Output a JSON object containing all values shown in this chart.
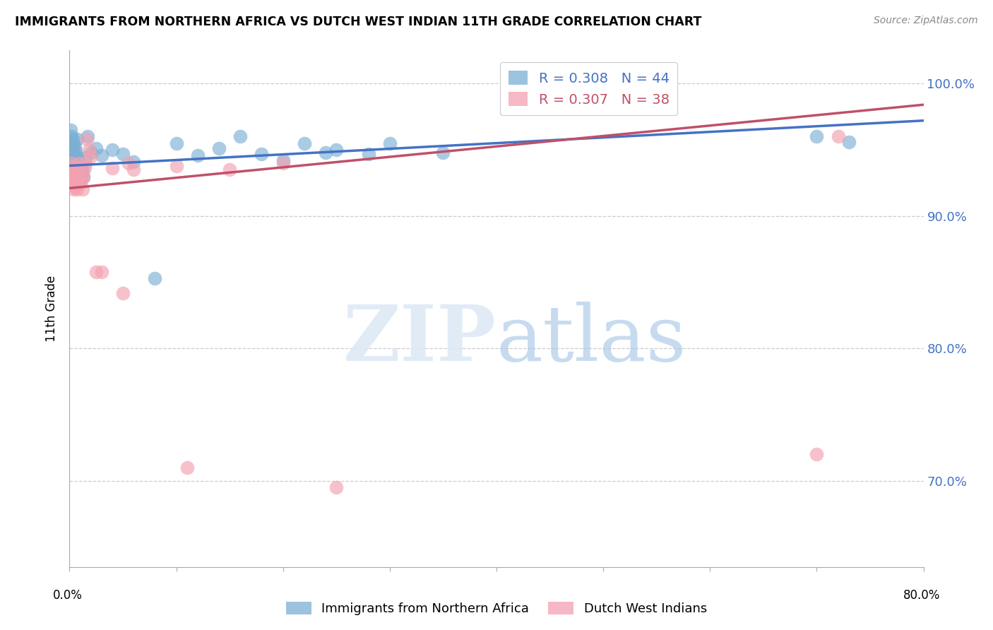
{
  "title": "IMMIGRANTS FROM NORTHERN AFRICA VS DUTCH WEST INDIAN 11TH GRADE CORRELATION CHART",
  "source": "Source: ZipAtlas.com",
  "ylabel": "11th Grade",
  "y_ticks": [
    0.7,
    0.8,
    0.9,
    1.0
  ],
  "y_tick_labels": [
    "70.0%",
    "80.0%",
    "90.0%",
    "100.0%"
  ],
  "x_ticks": [
    0.0,
    0.1,
    0.2,
    0.3,
    0.4,
    0.5,
    0.6,
    0.7,
    0.8
  ],
  "x_tick_labels": [
    "",
    "",
    "",
    "",
    "",
    "",
    "",
    "",
    ""
  ],
  "x_range": [
    0.0,
    0.8
  ],
  "y_range": [
    0.635,
    1.025
  ],
  "blue_color": "#7BAFD4",
  "pink_color": "#F4A0B0",
  "blue_line_color": "#4472C4",
  "pink_line_color": "#C0506A",
  "legend_blue_R": "0.308",
  "legend_blue_N": "44",
  "legend_pink_R": "0.307",
  "legend_pink_N": "38",
  "legend_label_blue": "Immigrants from Northern Africa",
  "legend_label_pink": "Dutch West Indians",
  "blue_scatter_x": [
    0.001,
    0.001,
    0.002,
    0.002,
    0.003,
    0.003,
    0.004,
    0.004,
    0.005,
    0.005,
    0.006,
    0.006,
    0.007,
    0.007,
    0.008,
    0.009,
    0.009,
    0.01,
    0.011,
    0.012,
    0.013,
    0.015,
    0.017,
    0.02,
    0.025,
    0.03,
    0.04,
    0.05,
    0.06,
    0.08,
    0.1,
    0.12,
    0.14,
    0.16,
    0.18,
    0.2,
    0.22,
    0.24,
    0.25,
    0.28,
    0.3,
    0.35,
    0.7,
    0.73
  ],
  "blue_scatter_y": [
    0.965,
    0.955,
    0.96,
    0.948,
    0.958,
    0.95,
    0.955,
    0.943,
    0.952,
    0.946,
    0.949,
    0.94,
    0.958,
    0.945,
    0.942,
    0.941,
    0.932,
    0.938,
    0.936,
    0.934,
    0.929,
    0.944,
    0.96,
    0.948,
    0.951,
    0.946,
    0.95,
    0.947,
    0.941,
    0.853,
    0.955,
    0.946,
    0.951,
    0.96,
    0.947,
    0.942,
    0.955,
    0.948,
    0.95,
    0.947,
    0.955,
    0.948,
    0.96,
    0.956
  ],
  "pink_scatter_x": [
    0.001,
    0.002,
    0.002,
    0.003,
    0.003,
    0.004,
    0.004,
    0.005,
    0.005,
    0.006,
    0.006,
    0.007,
    0.007,
    0.008,
    0.008,
    0.009,
    0.01,
    0.011,
    0.012,
    0.013,
    0.014,
    0.015,
    0.016,
    0.018,
    0.02,
    0.025,
    0.03,
    0.04,
    0.05,
    0.055,
    0.06,
    0.1,
    0.15,
    0.2,
    0.25,
    0.11,
    0.7,
    0.72
  ],
  "pink_scatter_y": [
    0.935,
    0.94,
    0.93,
    0.935,
    0.928,
    0.925,
    0.92,
    0.922,
    0.938,
    0.93,
    0.925,
    0.928,
    0.92,
    0.935,
    0.928,
    0.94,
    0.925,
    0.928,
    0.92,
    0.93,
    0.936,
    0.94,
    0.958,
    0.95,
    0.945,
    0.858,
    0.858,
    0.936,
    0.842,
    0.94,
    0.935,
    0.938,
    0.935,
    0.94,
    0.695,
    0.71,
    0.72,
    0.96
  ],
  "blue_line_x": [
    0.0,
    0.8
  ],
  "blue_line_y": [
    0.938,
    0.972
  ],
  "pink_line_x": [
    0.0,
    0.8
  ],
  "pink_line_y": [
    0.921,
    0.984
  ]
}
